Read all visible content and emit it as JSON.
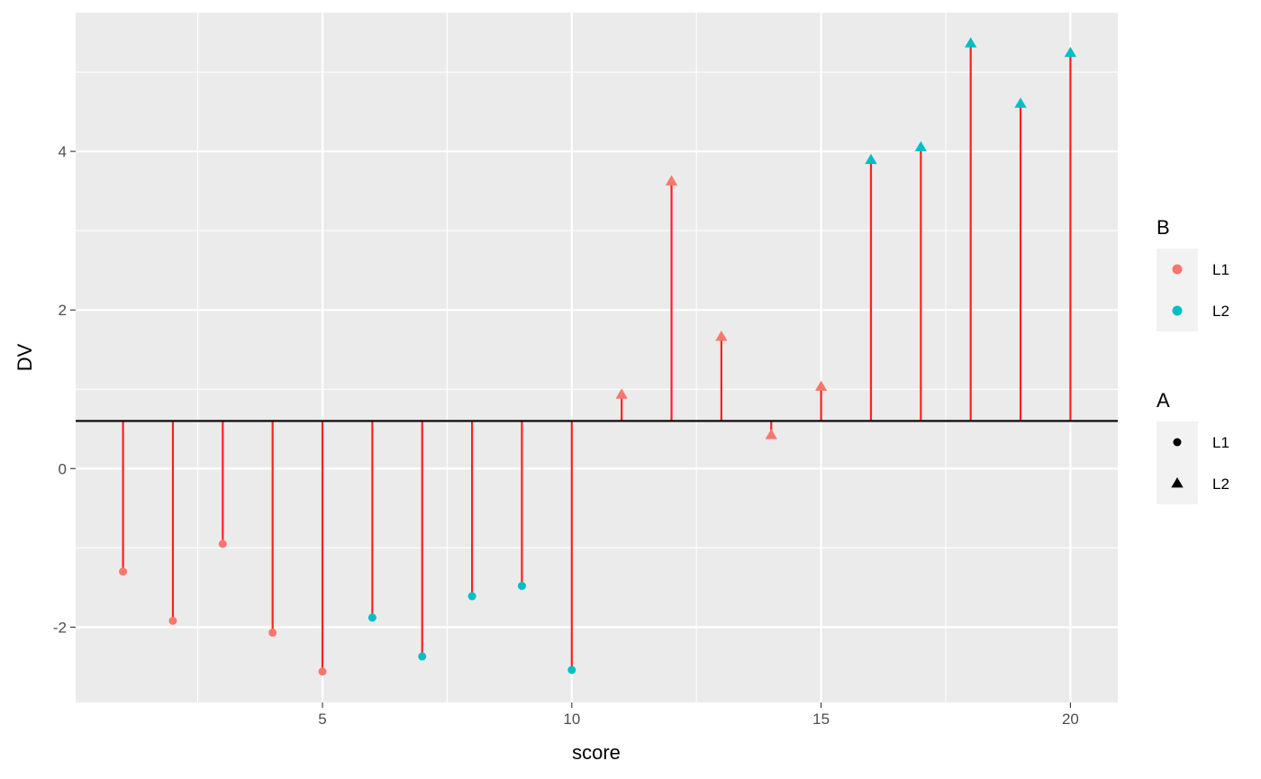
{
  "chart_data": {
    "type": "scatter",
    "title": "",
    "xlabel": "score",
    "ylabel": "DV",
    "xlim": [
      0.05,
      20.95
    ],
    "ylim": [
      -2.95,
      5.75
    ],
    "x_ticks": [
      5,
      10,
      15,
      20
    ],
    "y_ticks": [
      -2,
      0,
      2,
      4
    ],
    "x_tick_labels": [
      "5",
      "10",
      "15",
      "20"
    ],
    "y_tick_labels": [
      "-2",
      "0",
      "2",
      "4"
    ],
    "reference_line": 0.6,
    "grid": true,
    "legend_position": "right",
    "colors": {
      "panel": "#EBEBEB",
      "grid": "#FFFFFF",
      "segment": "#FF2020",
      "hline": "#000000",
      "L1": "#F8766D",
      "L2": "#00BFC4"
    },
    "points": [
      {
        "x": 1,
        "y": -1.3,
        "A": "L1",
        "B": "L1"
      },
      {
        "x": 2,
        "y": -1.92,
        "A": "L1",
        "B": "L1"
      },
      {
        "x": 3,
        "y": -0.95,
        "A": "L1",
        "B": "L1"
      },
      {
        "x": 4,
        "y": -2.07,
        "A": "L1",
        "B": "L1"
      },
      {
        "x": 5,
        "y": -2.56,
        "A": "L1",
        "B": "L1"
      },
      {
        "x": 6,
        "y": -1.88,
        "A": "L1",
        "B": "L2"
      },
      {
        "x": 7,
        "y": -2.37,
        "A": "L1",
        "B": "L2"
      },
      {
        "x": 8,
        "y": -1.61,
        "A": "L1",
        "B": "L2"
      },
      {
        "x": 9,
        "y": -1.48,
        "A": "L1",
        "B": "L2"
      },
      {
        "x": 10,
        "y": -2.54,
        "A": "L1",
        "B": "L2"
      },
      {
        "x": 11,
        "y": 0.93,
        "A": "L2",
        "B": "L1"
      },
      {
        "x": 12,
        "y": 3.62,
        "A": "L2",
        "B": "L1"
      },
      {
        "x": 13,
        "y": 1.66,
        "A": "L2",
        "B": "L1"
      },
      {
        "x": 14,
        "y": 0.42,
        "A": "L2",
        "B": "L1"
      },
      {
        "x": 15,
        "y": 1.03,
        "A": "L2",
        "B": "L1"
      },
      {
        "x": 16,
        "y": 3.89,
        "A": "L2",
        "B": "L2"
      },
      {
        "x": 17,
        "y": 4.05,
        "A": "L2",
        "B": "L2"
      },
      {
        "x": 18,
        "y": 5.36,
        "A": "L2",
        "B": "L2"
      },
      {
        "x": 19,
        "y": 4.6,
        "A": "L2",
        "B": "L2"
      },
      {
        "x": 20,
        "y": 5.24,
        "A": "L2",
        "B": "L2"
      }
    ],
    "legends": [
      {
        "title": "B",
        "kind": "color",
        "entries": [
          {
            "label": "L1",
            "color": "#F8766D"
          },
          {
            "label": "L2",
            "color": "#00BFC4"
          }
        ]
      },
      {
        "title": "A",
        "kind": "shape",
        "entries": [
          {
            "label": "L1",
            "shape": "circle"
          },
          {
            "label": "L2",
            "shape": "triangle"
          }
        ]
      }
    ]
  }
}
